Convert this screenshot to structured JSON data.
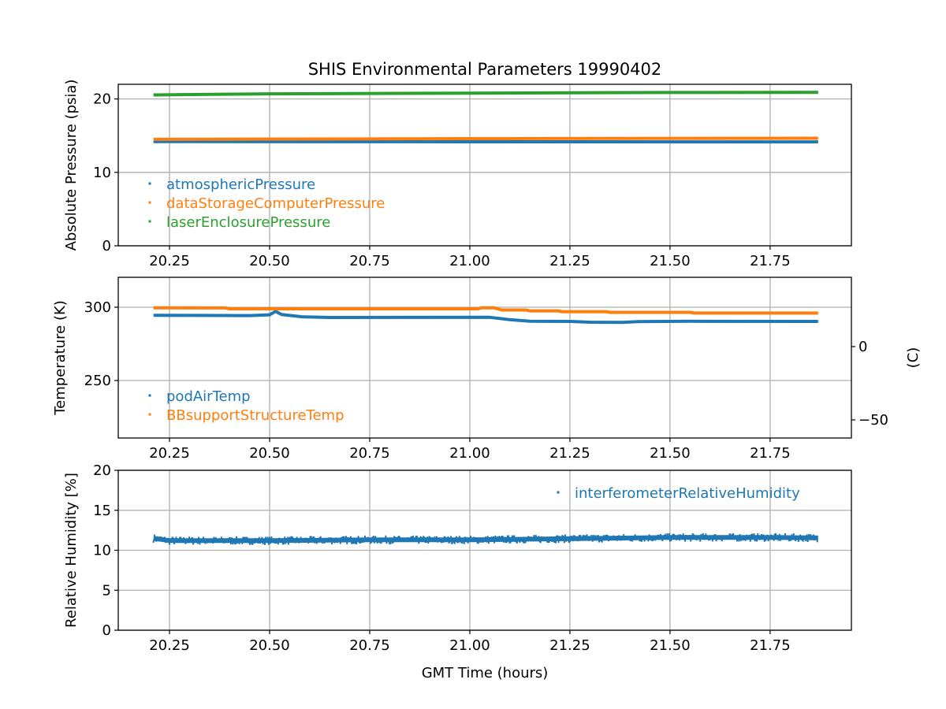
{
  "chart_data": [
    {
      "type": "line",
      "id": "pressure",
      "title": "SHIS Environmental Parameters 19990402",
      "xlabel": "",
      "ylabel": "Absolute Pressure (psia)",
      "xlim": [
        20.122,
        21.953
      ],
      "ylim": [
        0,
        22
      ],
      "xticks": [
        20.25,
        20.5,
        20.75,
        21.0,
        21.25,
        21.5,
        21.75
      ],
      "xtick_labels": [
        "20.25",
        "20.50",
        "20.75",
        "21.00",
        "21.25",
        "21.50",
        "21.75"
      ],
      "yticks": [
        0,
        10,
        20
      ],
      "ytick_labels": [
        "0",
        "10",
        "20"
      ],
      "grid": true,
      "legend_position": "left-lower",
      "series": [
        {
          "name": "atmosphericPressure",
          "color": "#1f77b4",
          "points": [
            [
              20.21,
              14.2
            ],
            [
              21.0,
              14.17
            ],
            [
              21.87,
              14.15
            ]
          ]
        },
        {
          "name": "dataStorageComputerPressure",
          "color": "#ff7f0e",
          "points": [
            [
              20.21,
              14.5
            ],
            [
              21.0,
              14.6
            ],
            [
              21.87,
              14.65
            ]
          ]
        },
        {
          "name": "laserEnclosurePressure",
          "color": "#2ca02c",
          "points": [
            [
              20.21,
              20.55
            ],
            [
              20.5,
              20.7
            ],
            [
              21.0,
              20.8
            ],
            [
              21.5,
              20.88
            ],
            [
              21.87,
              20.9
            ]
          ]
        }
      ]
    },
    {
      "type": "line",
      "id": "temperature",
      "ylabel": "Temperature (K)",
      "y2label": "(C)",
      "xlim": [
        20.122,
        21.953
      ],
      "ylim": [
        210.8,
        320.4
      ],
      "xticks": [
        20.25,
        20.5,
        20.75,
        21.0,
        21.25,
        21.5,
        21.75
      ],
      "xtick_labels": [
        "20.25",
        "20.50",
        "20.75",
        "21.00",
        "21.25",
        "21.50",
        "21.75"
      ],
      "yticks": [
        250,
        300
      ],
      "ytick_labels": [
        "250",
        "300"
      ],
      "y2ticks": [
        -50,
        0
      ],
      "y2tick_labels": [
        "−50",
        "0"
      ],
      "grid": true,
      "legend_position": "left-lower",
      "series": [
        {
          "name": "podAirTemp",
          "color": "#1f77b4",
          "points": [
            [
              20.21,
              294.5
            ],
            [
              20.45,
              294.3
            ],
            [
              20.5,
              294.8
            ],
            [
              20.515,
              297.2
            ],
            [
              20.53,
              295.0
            ],
            [
              20.58,
              293.5
            ],
            [
              20.65,
              293.0
            ],
            [
              21.05,
              293.1
            ],
            [
              21.1,
              291.5
            ],
            [
              21.15,
              290.5
            ],
            [
              21.25,
              290.3
            ],
            [
              21.3,
              289.8
            ],
            [
              21.38,
              289.6
            ],
            [
              21.42,
              290.2
            ],
            [
              21.55,
              290.4
            ],
            [
              21.87,
              290.3
            ]
          ]
        },
        {
          "name": "BBsupportStructureTemp",
          "color": "#ff7f0e",
          "points": [
            [
              20.21,
              299.6
            ],
            [
              20.39,
              299.5
            ],
            [
              20.4,
              298.9
            ],
            [
              21.02,
              298.9
            ],
            [
              21.03,
              299.6
            ],
            [
              21.06,
              299.6
            ],
            [
              21.08,
              298.1
            ],
            [
              21.14,
              298.1
            ],
            [
              21.15,
              297.5
            ],
            [
              21.22,
              297.5
            ],
            [
              21.23,
              297.0
            ],
            [
              21.34,
              297.0
            ],
            [
              21.35,
              296.5
            ],
            [
              21.55,
              296.5
            ],
            [
              21.56,
              296.0
            ],
            [
              21.87,
              296.0
            ]
          ]
        }
      ]
    },
    {
      "type": "line",
      "id": "humidity",
      "xlabel": "GMT Time (hours)",
      "ylabel": "Relative Humidity [%]",
      "xlim": [
        20.122,
        21.953
      ],
      "ylim": [
        0,
        20
      ],
      "xticks": [
        20.25,
        20.5,
        20.75,
        21.0,
        21.25,
        21.5,
        21.75
      ],
      "xtick_labels": [
        "20.25",
        "20.50",
        "20.75",
        "21.00",
        "21.25",
        "21.50",
        "21.75"
      ],
      "yticks": [
        0,
        5,
        10,
        15,
        20
      ],
      "ytick_labels": [
        "0",
        "5",
        "10",
        "15",
        "20"
      ],
      "grid": true,
      "legend_position": "upper-right",
      "series": [
        {
          "name": "interferometerRelativeHumidity",
          "color": "#1f77b4",
          "noise_band": 0.4,
          "points": [
            [
              20.21,
              11.5
            ],
            [
              20.25,
              11.2
            ],
            [
              20.5,
              11.2
            ],
            [
              20.75,
              11.3
            ],
            [
              21.0,
              11.3
            ],
            [
              21.25,
              11.45
            ],
            [
              21.5,
              11.6
            ],
            [
              21.75,
              11.6
            ],
            [
              21.87,
              11.55
            ]
          ]
        }
      ]
    }
  ]
}
